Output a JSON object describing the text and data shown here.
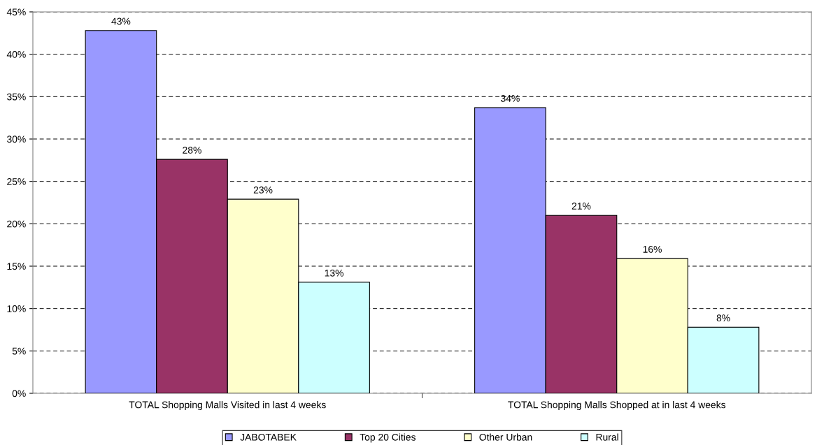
{
  "chart_data": {
    "type": "bar",
    "categories": [
      "TOTAL Shopping Malls Visited in last 4 weeks",
      "TOTAL Shopping Malls Shopped at in last 4 weeks"
    ],
    "series": [
      {
        "name": "JABOTABEK",
        "color": "#9999ff",
        "values": [
          42.8,
          33.7
        ],
        "value_labels": [
          "43%",
          "34%"
        ]
      },
      {
        "name": "Top 20 Cities",
        "color": "#993366",
        "values": [
          27.6,
          21.0
        ],
        "value_labels": [
          "28%",
          "21%"
        ]
      },
      {
        "name": "Other Urban",
        "color": "#ffffcc",
        "values": [
          22.9,
          15.9
        ],
        "value_labels": [
          "23%",
          "16%"
        ]
      },
      {
        "name": "Rural",
        "color": "#ccffff",
        "values": [
          13.1,
          7.8
        ],
        "value_labels": [
          "13%",
          "8%"
        ]
      }
    ],
    "ylim": [
      0,
      45
    ],
    "yticks": [
      {
        "value": 0,
        "label": "0%"
      },
      {
        "value": 5,
        "label": "5%"
      },
      {
        "value": 10,
        "label": "10%"
      },
      {
        "value": 15,
        "label": "15%"
      },
      {
        "value": 20,
        "label": "20%"
      },
      {
        "value": 25,
        "label": "25%"
      },
      {
        "value": 30,
        "label": "30%"
      },
      {
        "value": 35,
        "label": "35%"
      },
      {
        "value": 40,
        "label": "40%"
      },
      {
        "value": 45,
        "label": "45%"
      }
    ],
    "grid": "y",
    "line_style": "dashed",
    "legend": "bottom"
  }
}
